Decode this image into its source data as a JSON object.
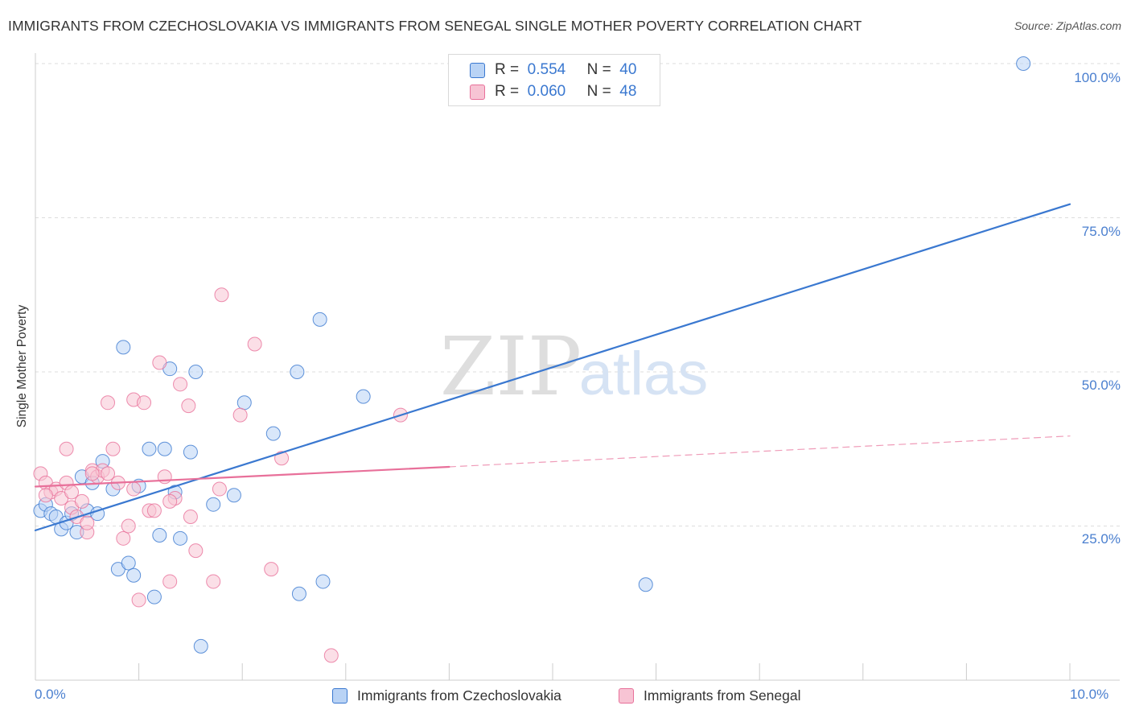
{
  "title": "IMMIGRANTS FROM CZECHOSLOVAKIA VS IMMIGRANTS FROM SENEGAL SINGLE MOTHER POVERTY CORRELATION CHART",
  "source": "Source: ZipAtlas.com",
  "colors": {
    "blue": "#3a78d0",
    "blue_fill": "#b9d3f5",
    "pink": "#e8709a",
    "pink_fill": "#f7c4d4",
    "tick_text": "#4a7fcf"
  },
  "legend": {
    "rows": [
      {
        "r_label": "R =",
        "r_value": "0.554",
        "n_label": "N =",
        "n_value": "40"
      },
      {
        "r_label": "R =",
        "r_value": "0.060",
        "n_label": "N =",
        "n_value": "48"
      }
    ]
  },
  "bottom_legend": [
    "Immigrants from Czechoslovakia",
    "Immigrants from Senegal"
  ],
  "chart_data": {
    "type": "scatter",
    "title": "IMMIGRANTS FROM CZECHOSLOVAKIA VS IMMIGRANTS FROM SENEGAL SINGLE MOTHER POVERTY CORRELATION CHART",
    "xlabel": "",
    "ylabel": "Single Mother Poverty",
    "xlim": [
      0,
      10
    ],
    "ylim": [
      0,
      105
    ],
    "x_tick_labels": [
      "0.0%",
      "10.0%"
    ],
    "y_ticks": [
      25,
      50,
      75,
      100
    ],
    "y_tick_labels": [
      "25.0%",
      "50.0%",
      "75.0%",
      "100.0%"
    ],
    "grid": true,
    "legend_position": "top-center",
    "watermark": "ZIPatlas",
    "series": [
      {
        "name": "Immigrants from Czechoslovakia",
        "color": "#3a78d0",
        "points": [
          [
            0.05,
            27.5
          ],
          [
            0.1,
            28.5
          ],
          [
            0.15,
            27
          ],
          [
            0.2,
            26.5
          ],
          [
            0.25,
            24.5
          ],
          [
            0.3,
            25.5
          ],
          [
            0.35,
            27
          ],
          [
            0.4,
            24
          ],
          [
            0.45,
            33
          ],
          [
            0.5,
            27.5
          ],
          [
            0.55,
            32
          ],
          [
            0.6,
            27
          ],
          [
            0.65,
            35.5
          ],
          [
            0.75,
            31
          ],
          [
            0.8,
            18
          ],
          [
            0.85,
            54
          ],
          [
            0.9,
            19
          ],
          [
            0.95,
            17
          ],
          [
            1.0,
            31.5
          ],
          [
            1.1,
            37.5
          ],
          [
            1.15,
            13.5
          ],
          [
            1.2,
            23.5
          ],
          [
            1.25,
            37.5
          ],
          [
            1.3,
            50.5
          ],
          [
            1.35,
            30.5
          ],
          [
            1.4,
            23
          ],
          [
            1.5,
            37
          ],
          [
            1.55,
            50
          ],
          [
            1.6,
            5.5
          ],
          [
            1.72,
            28.5
          ],
          [
            1.92,
            30
          ],
          [
            2.02,
            45
          ],
          [
            2.3,
            40
          ],
          [
            2.53,
            50
          ],
          [
            2.55,
            14
          ],
          [
            2.75,
            58.5
          ],
          [
            2.78,
            16
          ],
          [
            3.17,
            46
          ],
          [
            5.9,
            15.5
          ],
          [
            9.55,
            100
          ]
        ]
      },
      {
        "name": "Immigrants from Senegal",
        "color": "#e8709a",
        "points": [
          [
            0.05,
            33.5
          ],
          [
            0.1,
            32
          ],
          [
            0.15,
            30.5
          ],
          [
            0.2,
            31
          ],
          [
            0.25,
            29.5
          ],
          [
            0.3,
            37.5
          ],
          [
            0.3,
            32
          ],
          [
            0.35,
            28
          ],
          [
            0.4,
            26.5
          ],
          [
            0.45,
            29
          ],
          [
            0.5,
            24
          ],
          [
            0.5,
            25.5
          ],
          [
            0.55,
            34
          ],
          [
            0.6,
            33
          ],
          [
            0.65,
            34
          ],
          [
            0.7,
            45
          ],
          [
            0.75,
            37.5
          ],
          [
            0.8,
            32
          ],
          [
            0.85,
            23
          ],
          [
            0.9,
            25
          ],
          [
            0.95,
            45.5
          ],
          [
            1.0,
            13
          ],
          [
            1.05,
            45
          ],
          [
            1.1,
            27.5
          ],
          [
            1.15,
            27.5
          ],
          [
            1.2,
            51.5
          ],
          [
            1.25,
            33
          ],
          [
            1.3,
            16
          ],
          [
            1.35,
            29.5
          ],
          [
            1.4,
            48
          ],
          [
            1.48,
            44.5
          ],
          [
            1.5,
            26.5
          ],
          [
            1.55,
            21
          ],
          [
            1.72,
            16
          ],
          [
            1.78,
            31
          ],
          [
            1.8,
            62.5
          ],
          [
            1.98,
            43
          ],
          [
            2.12,
            54.5
          ],
          [
            2.28,
            18
          ],
          [
            2.38,
            36
          ],
          [
            2.86,
            4
          ],
          [
            3.53,
            43
          ],
          [
            0.55,
            33.5
          ],
          [
            0.1,
            30
          ],
          [
            0.35,
            30.5
          ],
          [
            0.7,
            33.5
          ],
          [
            0.95,
            31
          ],
          [
            1.3,
            29
          ]
        ]
      }
    ],
    "trend_lines": [
      {
        "series": "Immigrants from Czechoslovakia",
        "x": [
          0,
          10
        ],
        "y": [
          24.3,
          77.2
        ],
        "style": "solid"
      },
      {
        "series": "Immigrants from Senegal",
        "x": [
          0,
          4
        ],
        "y": [
          31.4,
          34.6
        ],
        "style": "solid"
      },
      {
        "series": "Immigrants from Senegal",
        "x": [
          4,
          10
        ],
        "y": [
          34.6,
          39.6
        ],
        "style": "dashed"
      }
    ]
  }
}
